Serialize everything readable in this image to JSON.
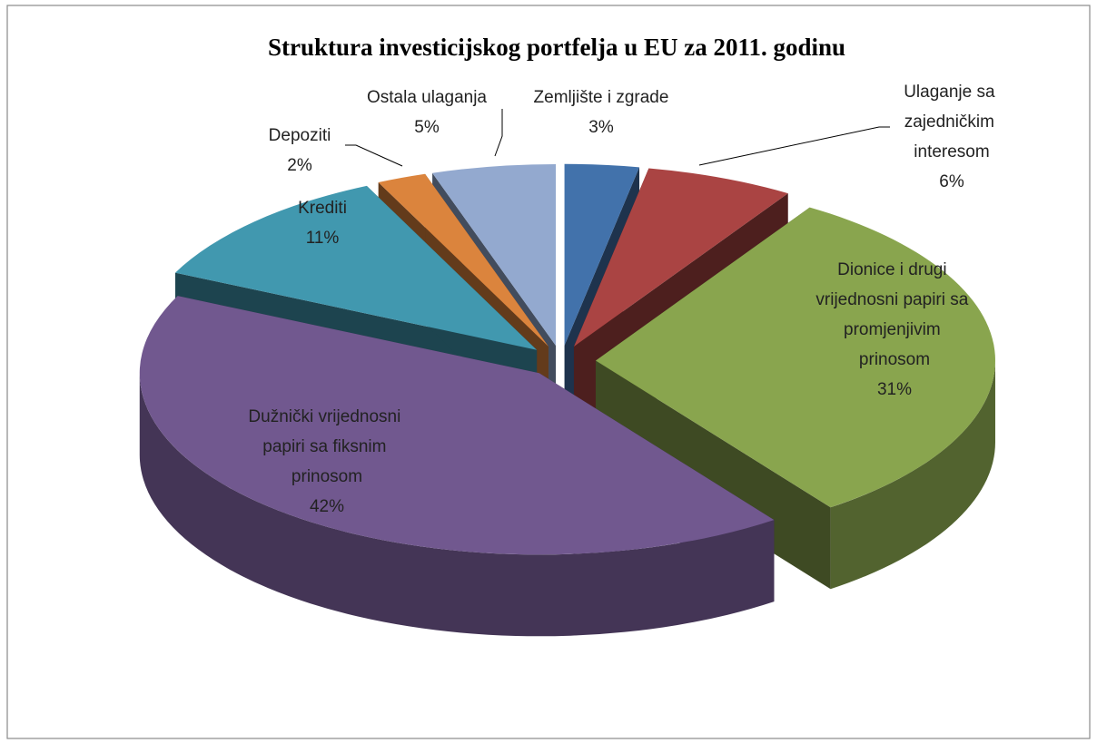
{
  "chart_data": {
    "type": "pie3d",
    "title": "Struktura investicijskog portfelja u EU za 2011. godinu",
    "categories": [
      "Zemljište i zgrade",
      "Ulaganje sa zajedničkim interesom",
      "Dionice i drugi vrijednosni papiri sa promjenjivim prinosom",
      "Dužnički vrijednosni papiri sa fiksnim prinosom",
      "Krediti",
      "Depoziti",
      "Ostala ulaganja"
    ],
    "values": [
      3,
      6,
      31,
      42,
      11,
      2,
      5
    ],
    "value_labels": [
      "3%",
      "6%",
      "31%",
      "42%",
      "11%",
      "2%",
      "5%"
    ],
    "colors": [
      "#4272ab",
      "#aa4443",
      "#89a54e",
      "#71588f",
      "#4198af",
      "#db843d",
      "#93a9cf"
    ]
  }
}
